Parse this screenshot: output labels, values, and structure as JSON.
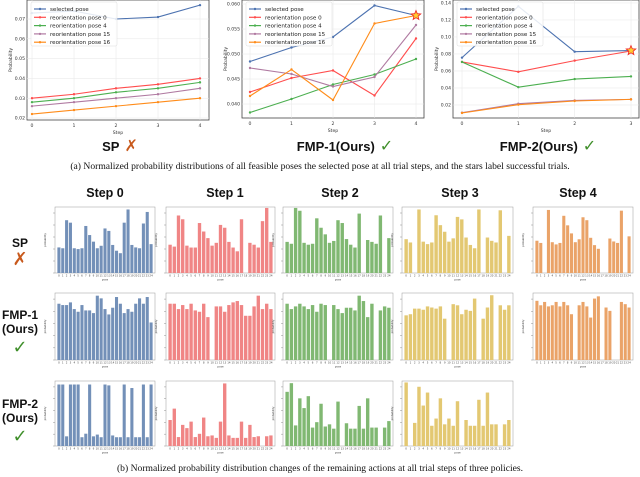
{
  "captions": {
    "a": "(a)  Normalized probability distributions of all feasible poses the selected pose at all trial steps, and the stars label successful trials.",
    "b": "(b)  Normalized probability distribution changes of the remaining actions at all trial steps of three policies."
  },
  "marks": {
    "cross": "✗",
    "check": "✓",
    "cross_color": "#c8591c",
    "check_color": "#3f8f2a"
  },
  "chart_data": [
    {
      "type": "line",
      "title": "SP",
      "result": "fail",
      "xlabel": "Step",
      "ylabel": "Probability",
      "x": [
        0,
        1,
        2,
        3,
        4
      ],
      "xticks": [
        "0",
        "1",
        "2",
        "3",
        "4"
      ],
      "ylim": [
        0.019,
        0.0796
      ],
      "yticks": [
        "0.02",
        "0.03",
        "0.04",
        "0.05",
        "0.06",
        "0.07"
      ],
      "ytick_values": [
        0.02,
        0.03,
        0.04,
        0.05,
        0.06,
        0.07
      ],
      "grid": true,
      "legend": "top-left",
      "success_star": null,
      "series": [
        {
          "name": "selected pose",
          "color": "#4c72b0",
          "values": [
            0.073,
            0.074,
            0.07,
            0.071,
            0.077
          ]
        },
        {
          "name": "reorientation pose 0",
          "color": "#ff4d4d",
          "values": [
            0.03,
            0.032,
            0.035,
            0.037,
            0.04
          ]
        },
        {
          "name": "reorientation pose 4",
          "color": "#4caf50",
          "values": [
            0.028,
            0.03,
            0.033,
            0.035,
            0.038
          ]
        },
        {
          "name": "reorientation pose 15",
          "color": "#b07aa1",
          "values": [
            0.026,
            0.028,
            0.03,
            0.032,
            0.035
          ]
        },
        {
          "name": "reorientation pose 16",
          "color": "#ff8c1a",
          "values": [
            0.022,
            0.024,
            0.026,
            0.028,
            0.03
          ]
        }
      ]
    },
    {
      "type": "line",
      "title": "FMP-1(Ours)",
      "result": "success",
      "xlabel": "Step",
      "ylabel": "Probability",
      "x": [
        0,
        1,
        2,
        3,
        4
      ],
      "xticks": [
        "0",
        "1",
        "2",
        "3",
        "4"
      ],
      "ylim": [
        0.0372,
        0.0608
      ],
      "yticks": [
        "0.040",
        "0.045",
        "0.050",
        "0.055",
        "0.060"
      ],
      "ytick_values": [
        0.04,
        0.045,
        0.05,
        0.055,
        0.06
      ],
      "grid": true,
      "legend": "top-left",
      "success_star": {
        "x": 4,
        "y": 0.0577
      },
      "series": [
        {
          "name": "selected pose",
          "color": "#4c72b0",
          "values": [
            0.0485,
            0.0513,
            0.0534,
            0.0597,
            0.0577
          ]
        },
        {
          "name": "reorientation pose 0",
          "color": "#ff4d4d",
          "values": [
            0.0424,
            0.0452,
            0.0467,
            0.0417,
            0.0531
          ]
        },
        {
          "name": "reorientation pose 4",
          "color": "#4caf50",
          "values": [
            0.0383,
            0.041,
            0.0439,
            0.0459,
            0.049
          ]
        },
        {
          "name": "reorientation pose 15",
          "color": "#b07aa1",
          "values": [
            0.0472,
            0.046,
            0.0435,
            0.0454,
            0.0558
          ]
        },
        {
          "name": "reorientation pose 16",
          "color": "#ff8c1a",
          "values": [
            0.0416,
            0.0469,
            0.0408,
            0.0561,
            0.0577
          ]
        }
      ]
    },
    {
      "type": "line",
      "title": "FMP-2(Ours)",
      "result": "success",
      "xlabel": "Step",
      "ylabel": "Probability",
      "x": [
        0,
        1,
        2,
        3
      ],
      "xticks": [
        "0",
        "1",
        "2",
        "3"
      ],
      "ylim": [
        0.0047,
        0.1435
      ],
      "yticks": [
        "0.02",
        "0.04",
        "0.06",
        "0.08",
        "0.10",
        "0.12",
        "0.14"
      ],
      "ytick_values": [
        0.02,
        0.04,
        0.06,
        0.08,
        0.1,
        0.12,
        0.14
      ],
      "grid": true,
      "legend": "top-left",
      "success_star": {
        "x": 3,
        "y": 0.084
      },
      "series": [
        {
          "name": "selected pose",
          "color": "#4c72b0",
          "values": [
            0.0757,
            0.136,
            0.0827,
            0.084
          ]
        },
        {
          "name": "reorientation pose 0",
          "color": "#ff4d4d",
          "values": [
            0.0706,
            0.059,
            0.0722,
            0.0835
          ]
        },
        {
          "name": "reorientation pose 4",
          "color": "#4caf50",
          "values": [
            0.0706,
            0.041,
            0.0505,
            0.0536
          ]
        },
        {
          "name": "reorientation pose 15",
          "color": "#b07aa1",
          "values": [
            0.011,
            0.0215,
            0.0254,
            0.0266
          ]
        },
        {
          "name": "reorientation pose 16",
          "color": "#ff8c1a",
          "values": [
            0.0106,
            0.0204,
            0.0247,
            0.0266
          ]
        }
      ]
    },
    {
      "type": "bar",
      "grid_title": "bar-grid",
      "column_titles": [
        "Step 0",
        "Step 1",
        "Step 2",
        "Step 3",
        "Step 4"
      ],
      "row_titles": [
        {
          "line1": "SP",
          "line2": "",
          "result": "fail"
        },
        {
          "line1": "FMP-1",
          "line2": "(Ours)",
          "result": "success"
        },
        {
          "line1": "FMP-2",
          "line2": "(Ours)",
          "result": "success"
        }
      ],
      "xlabel": "pose",
      "ylabel": "probability",
      "categories": [
        "0",
        "1",
        "2",
        "3",
        "4",
        "5",
        "6",
        "7",
        "8",
        "9",
        "10",
        "11",
        "12",
        "13",
        "14",
        "15",
        "16",
        "17",
        "18",
        "19",
        "20",
        "21",
        "22",
        "23",
        "24"
      ],
      "step_colors": [
        "#7390b8",
        "#f08585",
        "#80b872",
        "#e3c872",
        "#eaa368"
      ],
      "panels": [
        [
          {
            "ylim": [
              0,
              0.08
            ],
            "values": [
              0.031,
              0.03,
              0.064,
              0.061,
              0.03,
              0.029,
              0.03,
              0.057,
              0.046,
              0.038,
              0.03,
              0.033,
              0.054,
              0.051,
              0.034,
              0.027,
              0.024,
              0.061,
              0.077,
              0.034,
              0.031,
              0.03,
              0.06,
              0.074,
              0.035
            ]
          },
          {
            "ylim": [
              0,
              0.07
            ],
            "values": [
              0.03,
              0.028,
              0.061,
              0.057,
              0.029,
              0.027,
              0.027,
              0.053,
              0.044,
              0.037,
              0.029,
              0.032,
              0.051,
              0.048,
              0.033,
              0.027,
              0.023,
              0.057,
              0,
              0.032,
              0.03,
              0.027,
              0.055,
              0.069,
              0.033
            ]
          },
          {
            "ylim": [
              0,
              0.07
            ],
            "values": [
              0.033,
              0.031,
              0.069,
              0.066,
              0.032,
              0.03,
              0.031,
              0.058,
              0.048,
              0.041,
              0.032,
              0.034,
              0.056,
              0.053,
              0.036,
              0.03,
              0.027,
              0.063,
              0,
              0.035,
              0.033,
              0.031,
              0.061,
              0,
              0.037
            ]
          },
          {
            "ylim": [
              0,
              0.08
            ],
            "values": [
              0.041,
              0.037,
              0,
              0.077,
              0.038,
              0.035,
              0.037,
              0.07,
              0.058,
              0.05,
              0.038,
              0.042,
              0.068,
              0.065,
              0.043,
              0.034,
              0.03,
              0.077,
              0,
              0.043,
              0.039,
              0.037,
              0.076,
              0,
              0.045
            ]
          },
          {
            "ylim": [
              0,
              0.09
            ],
            "values": [
              0.044,
              0.041,
              0,
              0.086,
              0.042,
              0.039,
              0.041,
              0.078,
              0.065,
              0.054,
              0.042,
              0.046,
              0.076,
              0.072,
              0.048,
              0.038,
              0.033,
              0,
              0,
              0.047,
              0.043,
              0.041,
              0.085,
              0,
              0.05
            ]
          }
        ],
        [
          {
            "ylim": [
              0,
              0.05
            ],
            "values": [
              0.042,
              0.041,
              0.041,
              0.043,
              0.038,
              0.036,
              0.041,
              0.037,
              0.037,
              0.035,
              0.048,
              0.046,
              0.038,
              0.034,
              0.039,
              0.047,
              0.042,
              0.035,
              0.038,
              0.036,
              0.042,
              0.046,
              0.042,
              0.047,
              0.028
            ]
          },
          {
            "ylim": [
              0,
              0.05
            ],
            "values": [
              0.042,
              0.042,
              0.038,
              0.041,
              0.038,
              0.042,
              0.037,
              0.036,
              0.042,
              0.032,
              0,
              0.04,
              0.04,
              0.036,
              0.041,
              0.043,
              0.044,
              0.041,
              0.033,
              0.033,
              0.04,
              0.048,
              0.038,
              0.042,
              0.038
            ]
          },
          {
            "ylim": [
              0,
              0.05
            ],
            "values": [
              0.042,
              0.038,
              0.04,
              0.042,
              0.04,
              0.038,
              0.041,
              0.036,
              0.042,
              0.041,
              0,
              0.041,
              0.038,
              0.035,
              0.039,
              0.039,
              0.037,
              0.048,
              0.044,
              0.032,
              0.042,
              0,
              0.037,
              0.04,
              0.039
            ]
          },
          {
            "ylim": [
              0,
              0.06
            ],
            "values": [
              0.04,
              0.041,
              0.046,
              0.046,
              0.045,
              0.048,
              0.047,
              0.046,
              0.048,
              0.037,
              0,
              0.05,
              0.049,
              0.041,
              0.045,
              0.044,
              0.055,
              0,
              0.037,
              0.047,
              0.058,
              0,
              0.049,
              0.045,
              0.049
            ]
          },
          {
            "ylim": [
              0,
              0.06
            ],
            "values": [
              0.053,
              0.049,
              0.052,
              0.048,
              0.049,
              0.052,
              0.048,
              0.052,
              0.049,
              0.041,
              0,
              0.049,
              0.052,
              0.048,
              0.038,
              0.055,
              0.057,
              0,
              0.047,
              0.044,
              0,
              0,
              0.052,
              0.05,
              0.047
            ]
          }
        ],
        [
          {
            "ylim": [
              0,
              0.074
            ],
            "values": [
              0.07,
              0.07,
              0.011,
              0.07,
              0.07,
              0.07,
              0.01,
              0.014,
              0.07,
              0.011,
              0.013,
              0.01,
              0.07,
              0.069,
              0.012,
              0.01,
              0.01,
              0.07,
              0.01,
              0.066,
              0.01,
              0.01,
              0.07,
              0.01,
              0.07
            ]
          },
          {
            "ylim": [
              0,
              0.08
            ],
            "values": [
              0.032,
              0.046,
              0.011,
              0.026,
              0.022,
              0.03,
              0.011,
              0.015,
              0.035,
              0.012,
              0.013,
              0.01,
              0.03,
              0.077,
              0.013,
              0.01,
              0.01,
              0.03,
              0.01,
              0.026,
              0.011,
              0.012,
              0,
              0.012,
              0.013
            ]
          },
          {
            "ylim": [
              0,
              0.06
            ],
            "values": [
              0.05,
              0.058,
              0.019,
              0.044,
              0.035,
              0.046,
              0.017,
              0.022,
              0.039,
              0.018,
              0.02,
              0.016,
              0.041,
              0,
              0.021,
              0.016,
              0.016,
              0.037,
              0.016,
              0.044,
              0.017,
              0.017,
              0,
              0.017,
              0.023
            ]
          },
          {
            "ylim": [
              0,
              0.045
            ],
            "values": [
              0.044,
              0,
              0.016,
              0.041,
              0.028,
              0.037,
              0.014,
              0.019,
              0.033,
              0.015,
              0.019,
              0.014,
              0.031,
              0,
              0.018,
              0.014,
              0.014,
              0.032,
              0.014,
              0.037,
              0.015,
              0.015,
              0,
              0.015,
              0.018
            ]
          },
          null
        ]
      ]
    }
  ]
}
